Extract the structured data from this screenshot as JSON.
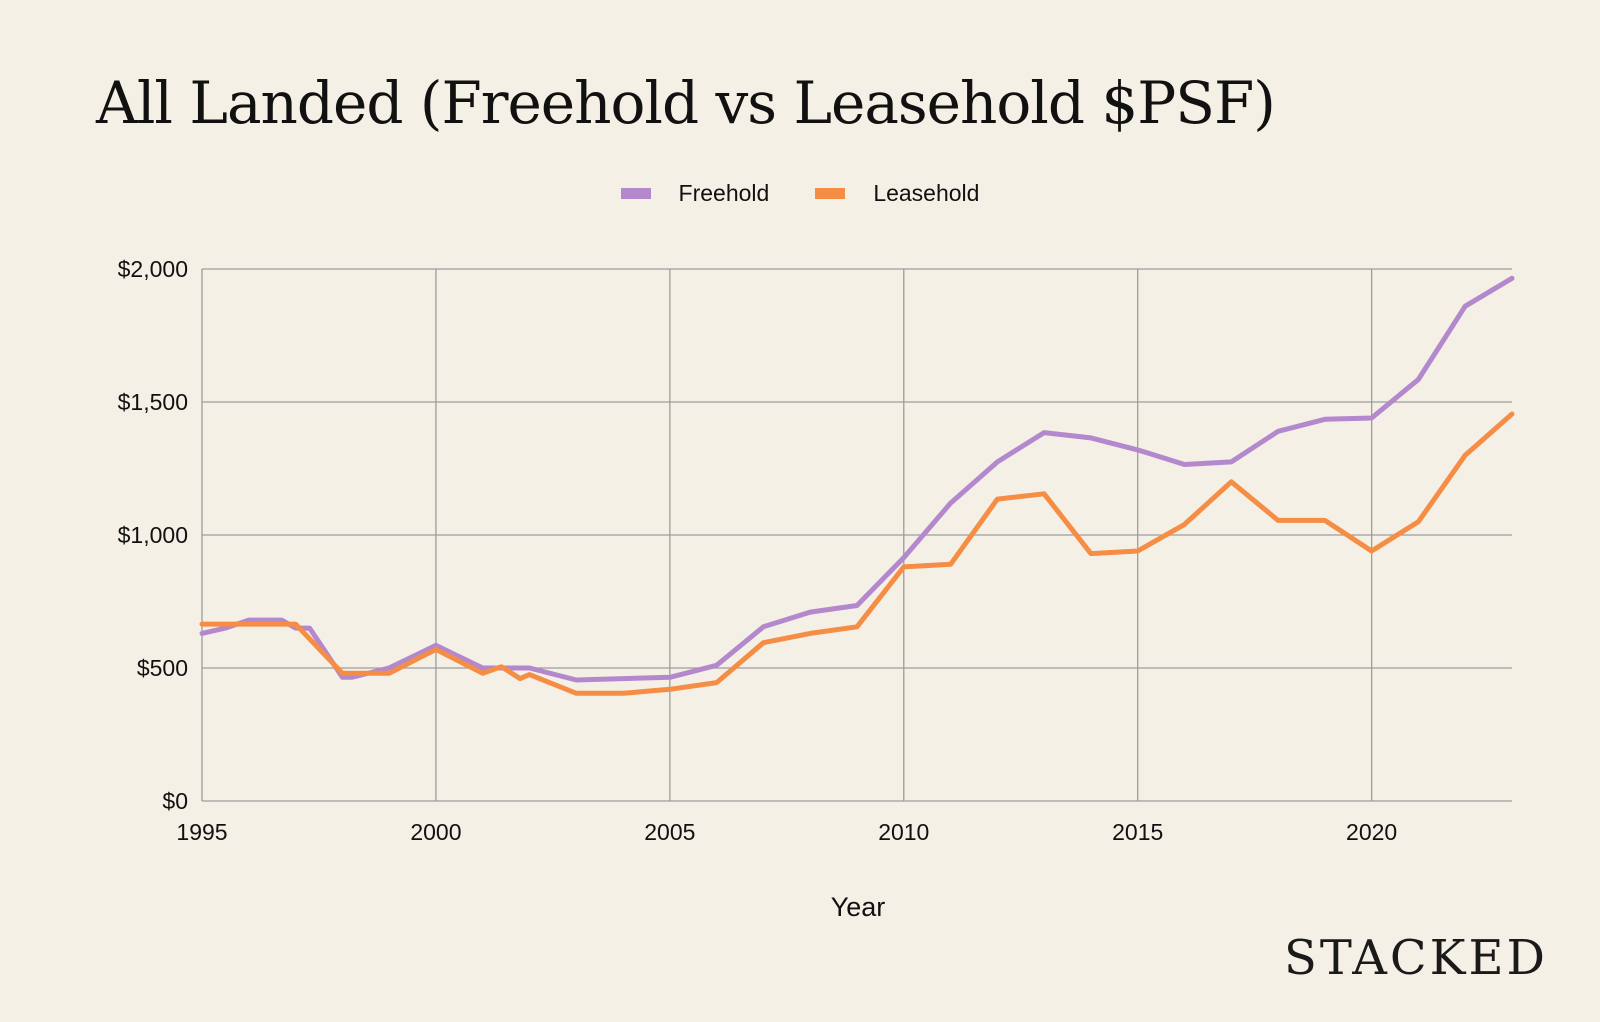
{
  "chart_data": {
    "type": "line",
    "title": "All Landed (Freehold vs Leasehold $PSF)",
    "xlabel": "Year",
    "ylabel": "",
    "xlim": [
      1995,
      2023
    ],
    "ylim": [
      0,
      2000
    ],
    "x_ticks": [
      1995,
      2000,
      2005,
      2010,
      2015,
      2020
    ],
    "y_ticks": [
      0,
      500,
      1000,
      1500,
      2000
    ],
    "y_tick_labels": [
      "$0",
      "$500",
      "$1,000",
      "$1,500",
      "$2,000"
    ],
    "grid": true,
    "legend_position": "top-center",
    "series": [
      {
        "name": "Freehold",
        "color": "#b388cc",
        "points": [
          [
            1995,
            630
          ],
          [
            1995.5,
            650
          ],
          [
            1996,
            680
          ],
          [
            1996.7,
            680
          ],
          [
            1997,
            650
          ],
          [
            1997.3,
            650
          ],
          [
            1998,
            465
          ],
          [
            1998.2,
            465
          ],
          [
            1999,
            500
          ],
          [
            2000,
            585
          ],
          [
            2001,
            500
          ],
          [
            2002,
            500
          ],
          [
            2003,
            455
          ],
          [
            2004,
            460
          ],
          [
            2005,
            465
          ],
          [
            2006,
            510
          ],
          [
            2007,
            655
          ],
          [
            2008,
            710
          ],
          [
            2009,
            735
          ],
          [
            2010,
            915
          ],
          [
            2011,
            1120
          ],
          [
            2012,
            1275
          ],
          [
            2013,
            1385
          ],
          [
            2014,
            1365
          ],
          [
            2015,
            1320
          ],
          [
            2016,
            1265
          ],
          [
            2017,
            1275
          ],
          [
            2018,
            1390
          ],
          [
            2019,
            1435
          ],
          [
            2020,
            1440
          ],
          [
            2021,
            1585
          ],
          [
            2022,
            1860
          ],
          [
            2023,
            1965
          ]
        ]
      },
      {
        "name": "Leasehold",
        "color": "#f58d45",
        "points": [
          [
            1995,
            665
          ],
          [
            1996,
            665
          ],
          [
            1997,
            665
          ],
          [
            1998,
            480
          ],
          [
            1999,
            480
          ],
          [
            2000,
            570
          ],
          [
            2001,
            480
          ],
          [
            2001.4,
            505
          ],
          [
            2001.8,
            460
          ],
          [
            2002,
            475
          ],
          [
            2003,
            405
          ],
          [
            2004,
            405
          ],
          [
            2005,
            420
          ],
          [
            2006,
            445
          ],
          [
            2007,
            595
          ],
          [
            2008,
            630
          ],
          [
            2009,
            655
          ],
          [
            2010,
            880
          ],
          [
            2011,
            890
          ],
          [
            2012,
            1135
          ],
          [
            2013,
            1155
          ],
          [
            2014,
            930
          ],
          [
            2015,
            940
          ],
          [
            2016,
            1040
          ],
          [
            2017,
            1200
          ],
          [
            2018,
            1055
          ],
          [
            2019,
            1055
          ],
          [
            2020,
            940
          ],
          [
            2021,
            1050
          ],
          [
            2022,
            1300
          ],
          [
            2023,
            1455
          ]
        ]
      }
    ]
  },
  "brand": "STACKED"
}
